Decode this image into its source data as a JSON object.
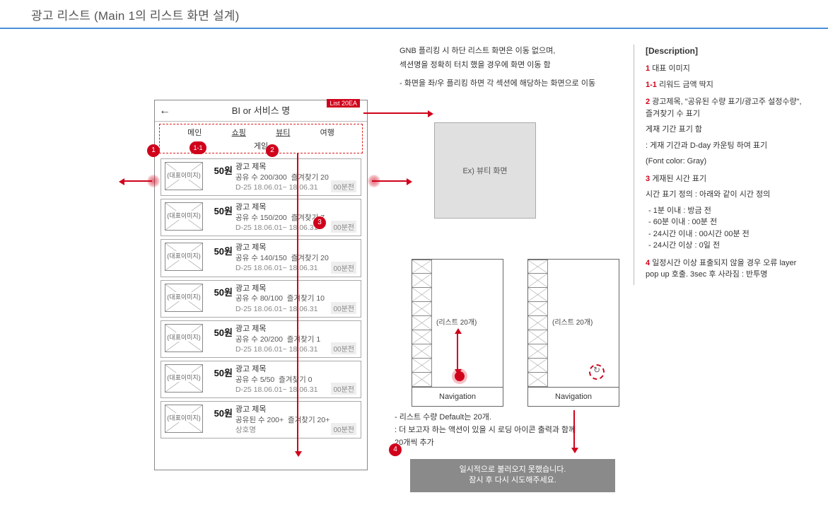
{
  "page_title": "광고 리스트 (Main 1의 리스트 화면 설계)",
  "phone": {
    "header_title": "BI or 서비스 명",
    "back_glyph": "←",
    "tabs_row1": [
      "메인",
      "쇼핑",
      "뷰티",
      "여행"
    ],
    "tabs_row2": "게임",
    "list_badge": "List 20EA",
    "thumb_label": "(대표이미지)",
    "items": [
      {
        "reward": "50원",
        "title": "광고 제목",
        "share": "공유 수 200/300",
        "fav": "즐겨찾기 20",
        "date": "D-25 18.06.01~ 18.06.31",
        "time": "00분전"
      },
      {
        "reward": "50원",
        "title": "광고 제목",
        "share": "공유 수 150/200",
        "fav": "즐겨찾기 7",
        "date": "D-25 18.06.01~ 18.06.31",
        "time": "00분전"
      },
      {
        "reward": "50원",
        "title": "광고 제목",
        "share": "공유 수 140/150",
        "fav": "즐겨찾기 20",
        "date": "D-25 18.06.01~ 18.06.31",
        "time": "00분전"
      },
      {
        "reward": "50원",
        "title": "광고 제목",
        "share": "공유 수 80/100",
        "fav": "즐겨찾기 10",
        "date": "D-25 18.06.01~ 18.06.31",
        "time": "00분전"
      },
      {
        "reward": "50원",
        "title": "광고 제목",
        "share": "공유 수 20/200",
        "fav": "즐겨찾기 1",
        "date": "D-25 18.06.01~ 18.06.31",
        "time": "00분전"
      },
      {
        "reward": "50원",
        "title": "광고 제목",
        "share": "공유 수 5/50",
        "fav": "즐겨찾기 0",
        "date": "D-25 18.06.01~ 18.06.31",
        "time": "00분전"
      },
      {
        "reward": "50원",
        "title": "광고 제목",
        "share": "공유된 수 200+",
        "fav": "즐겨찾기 20+",
        "date": "상호명",
        "time": "00분전"
      }
    ]
  },
  "markers": {
    "m1": "1",
    "m1_1": "1-1",
    "m2": "2",
    "m3": "3",
    "m4": "4"
  },
  "anno_top": {
    "l1": "GNB 플리킹  시 하단 리스트 화면은 이동 없으며,",
    "l2": "섹션명을 정확히 터치 했을 경우에 화면 이동 함",
    "l3": "- 화면을 좌/우 플리킹 하면 각 섹션에 해당하는 화면으로 이동"
  },
  "example_label": "Ex) 뷰티 화면",
  "mini": {
    "mid_label": "(리스트 20개)",
    "nav": "Navigation"
  },
  "anno_mid": {
    "l1": "- 리스트 수량 Default는 20개.",
    "l2": ": 더 보고자 하는 액션이 있을 시 로딩 아이콘 출력과 함께",
    "l3": "20개씩 추가"
  },
  "toast": {
    "l1": "일시적으로 불러오지 못했습니다.",
    "l2": "잠시 후 다시 시도해주세요."
  },
  "desc": {
    "heading": "[Description]",
    "d1": {
      "num": "1",
      "text": "대표 이미지"
    },
    "d1_1": {
      "num": "1-1",
      "text": "리워드 금액 딱지"
    },
    "d2": {
      "num": "2",
      "text1": "광고제목, \"공유된 수량 표기/광고주 설정수량\", 즐겨찾기 수 표기",
      "text2": "게재 기간 표기 함",
      "text3": ": 게재 기간과 D-day 카운팅 하여 표기",
      "text4": "(Font color: Gray)"
    },
    "d3": {
      "num": "3",
      "text": "게재된 시간 표기",
      "def": "시간 표기 정의 : 아래와 같이 시간 정의",
      "rules": [
        "1분 이내 : 방금 전",
        "60분 이내 : 00분 전",
        "24시간 이내 : 00시간 00분 전",
        "24시간 이상 : 0일 전"
      ]
    },
    "d4": {
      "num": "4",
      "text": "일정시간 이상 표출되지 않을 경우 오류 layer pop up 호출. 3sec 후 사라짐 : 반투명"
    }
  },
  "colors": {
    "accent": "#d0021b",
    "rule": "#4a90d9",
    "gray": "#888888"
  }
}
